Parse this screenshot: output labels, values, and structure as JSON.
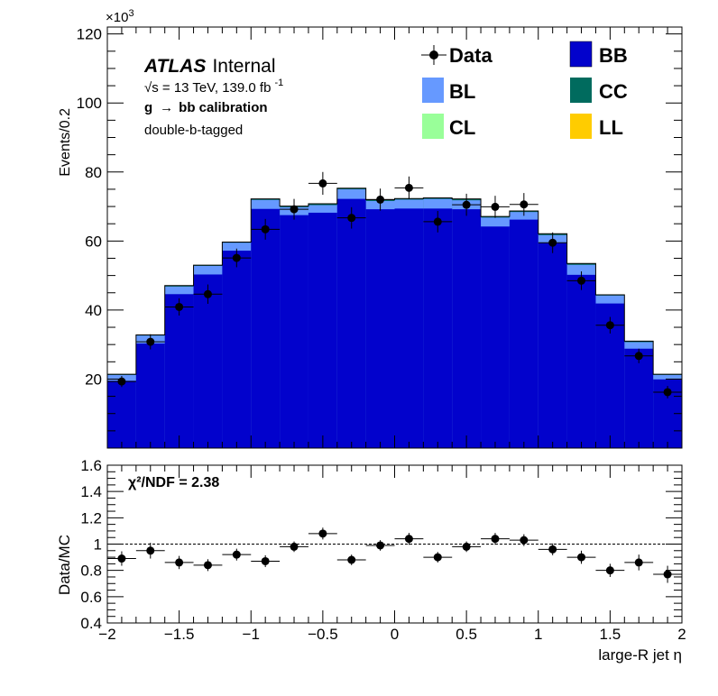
{
  "chart_data": {
    "type": "bar",
    "x_bins": {
      "edges": [
        -2.0,
        -1.8,
        -1.6,
        -1.4,
        -1.2,
        -1.0,
        -0.8,
        -0.6,
        -0.4,
        -0.2,
        0.0,
        0.2,
        0.4,
        0.6,
        0.8,
        1.0,
        1.2,
        1.4,
        1.6,
        1.8,
        2.0
      ]
    },
    "xlim": [
      -2,
      2
    ],
    "xlabel": "large-R jet η",
    "x_ticks": [
      "−2",
      "−1.5",
      "−1",
      "−0.5",
      "0",
      "0.5",
      "1",
      "1.5",
      "2"
    ],
    "main": {
      "ylabel": "Events/0.2",
      "y_multiplier": "×10",
      "y_multiplier_exponent": "3",
      "ylim": [
        0,
        122
      ],
      "y_ticks": [
        "20",
        "40",
        "60",
        "80",
        "100",
        "120"
      ],
      "stack_totals_cumulative": {
        "BB": [
          19.5,
          30.3,
          44.6,
          50.3,
          57.2,
          69.3,
          67.5,
          68.2,
          72.2,
          69.2,
          69.4,
          69.4,
          69.2,
          64.2,
          66.2,
          59.4,
          50.2,
          41.9,
          28.8,
          19.9
        ],
        "BL_top": [
          21.2,
          32.6,
          46.8,
          52.8,
          59.5,
          71.9,
          69.8,
          70.4,
          75.0,
          71.6,
          72.0,
          72.2,
          71.8,
          66.8,
          68.4,
          61.7,
          53.1,
          44.2,
          30.7,
          21.2
        ],
        "CC_top": [
          21.4,
          32.8,
          47.1,
          53.0,
          59.7,
          72.2,
          70.1,
          70.8,
          75.3,
          72.0,
          72.3,
          72.5,
          72.2,
          67.1,
          68.7,
          62.1,
          53.5,
          44.4,
          31.0,
          21.4
        ]
      },
      "data": {
        "values": [
          19.3,
          30.8,
          40.9,
          44.6,
          55.1,
          63.4,
          69.2,
          76.7,
          66.7,
          72.0,
          75.4,
          65.6,
          70.5,
          69.9,
          70.6,
          59.5,
          48.5,
          35.6,
          26.7,
          16.2
        ],
        "errors": [
          1.6,
          2.2,
          2.5,
          2.8,
          2.7,
          3.0,
          3.0,
          3.3,
          3.1,
          3.2,
          3.3,
          3.1,
          3.2,
          3.2,
          3.3,
          3.0,
          2.7,
          2.4,
          2.1,
          1.8
        ]
      }
    },
    "ratio": {
      "ylabel": "Data/MC",
      "ylim": [
        0.4,
        1.6
      ],
      "y_ticks": [
        "0.4",
        "0.6",
        "0.8",
        "1",
        "1.2",
        "1.4",
        "1.6"
      ],
      "reference_line": 1,
      "values": [
        0.89,
        0.95,
        0.86,
        0.84,
        0.92,
        0.87,
        0.98,
        1.08,
        0.88,
        0.99,
        1.04,
        0.9,
        0.98,
        1.04,
        1.03,
        0.96,
        0.9,
        0.8,
        0.86,
        0.77
      ],
      "errors": [
        0.055,
        0.06,
        0.05,
        0.045,
        0.045,
        0.045,
        0.04,
        0.045,
        0.04,
        0.04,
        0.045,
        0.04,
        0.04,
        0.045,
        0.045,
        0.045,
        0.05,
        0.05,
        0.06,
        0.065
      ],
      "annotation": "χ²/NDF = 2.38"
    },
    "legend": {
      "placement": "top-right",
      "entries": [
        {
          "name": "Data",
          "kind": "marker",
          "color": "#000000"
        },
        {
          "name": "BB",
          "kind": "fill",
          "color": "#0202cc"
        },
        {
          "name": "BL",
          "kind": "fill",
          "color": "#6699ff"
        },
        {
          "name": "CC",
          "kind": "fill",
          "color": "#006b5e"
        },
        {
          "name": "CL",
          "kind": "fill",
          "color": "#99ff99"
        },
        {
          "name": "LL",
          "kind": "fill",
          "color": "#ffcc00"
        }
      ]
    },
    "labels": {
      "atlas": "ATLAS",
      "internal": "Internal",
      "energy_prefix": "√s = 13 TeV, 139.0 fb",
      "energy_exponent": "-1",
      "calibration_prefix": "g",
      "calibration_suffix": "bb calibration",
      "category": "double-b-tagged"
    }
  }
}
